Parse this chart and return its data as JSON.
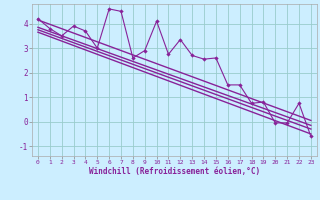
{
  "title": "",
  "xlabel": "Windchill (Refroidissement éolien,°C)",
  "bg_color": "#cceeff",
  "line_color": "#882299",
  "grid_color": "#99cccc",
  "x_data": [
    0,
    1,
    2,
    3,
    4,
    5,
    6,
    7,
    8,
    9,
    10,
    11,
    12,
    13,
    14,
    15,
    16,
    17,
    18,
    19,
    20,
    21,
    22,
    23
  ],
  "y_jagged": [
    4.2,
    3.8,
    3.5,
    3.9,
    3.7,
    3.0,
    4.6,
    4.5,
    2.6,
    2.9,
    4.1,
    2.75,
    3.35,
    2.7,
    2.55,
    2.6,
    1.5,
    1.5,
    0.75,
    0.8,
    -0.05,
    -0.05,
    0.75,
    -0.6
  ],
  "ylim": [
    -1.4,
    4.8
  ],
  "xlim": [
    -0.5,
    23.5
  ],
  "yticks": [
    -1,
    0,
    1,
    2,
    3,
    4
  ],
  "xticks": [
    0,
    1,
    2,
    3,
    4,
    5,
    6,
    7,
    8,
    9,
    10,
    11,
    12,
    13,
    14,
    15,
    16,
    17,
    18,
    19,
    20,
    21,
    22,
    23
  ],
  "reg_lines": [
    {
      "x0": 0,
      "y0": 4.15,
      "x1": 23,
      "y1": 0.05
    },
    {
      "x0": 0,
      "y0": 3.85,
      "x1": 23,
      "y1": -0.15
    },
    {
      "x0": 0,
      "y0": 3.75,
      "x1": 23,
      "y1": -0.3
    },
    {
      "x0": 0,
      "y0": 3.65,
      "x1": 23,
      "y1": -0.5
    }
  ]
}
